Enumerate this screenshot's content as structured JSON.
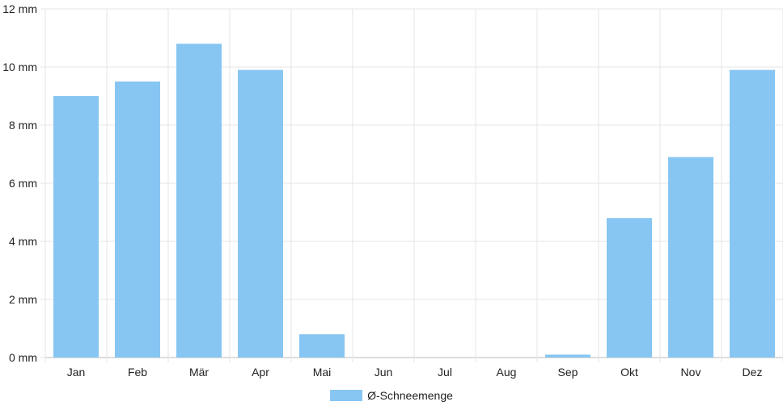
{
  "chart_data": {
    "type": "bar",
    "categories": [
      "Jan",
      "Feb",
      "Mär",
      "Apr",
      "Mai",
      "Jun",
      "Jul",
      "Aug",
      "Sep",
      "Okt",
      "Nov",
      "Dez"
    ],
    "series": [
      {
        "name": "Ø-Schneemenge",
        "values": [
          9.0,
          9.5,
          10.8,
          9.9,
          0.8,
          0,
          0,
          0,
          0.1,
          4.8,
          6.9,
          9.9
        ],
        "color": "#87C6F2"
      }
    ],
    "yticks": [
      "0 mm",
      "2 mm",
      "4 mm",
      "6 mm",
      "8 mm",
      "10 mm",
      "12 mm"
    ],
    "ylim": [
      0,
      12
    ],
    "grid": true,
    "legend_position": "bottom"
  }
}
